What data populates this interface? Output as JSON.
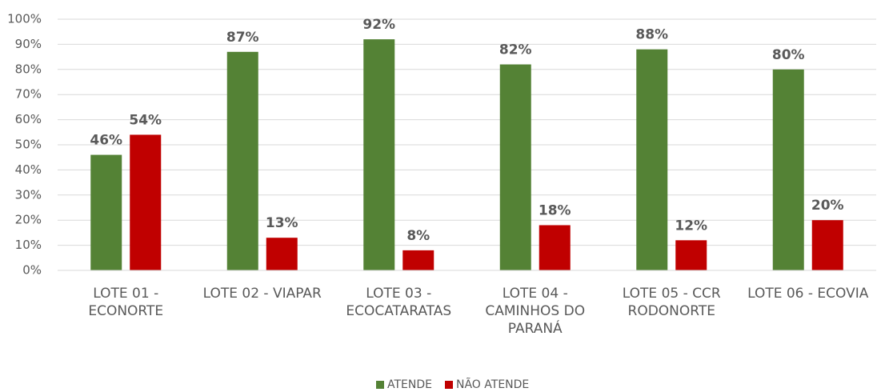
{
  "chart_data": {
    "type": "bar",
    "categories": [
      "LOTE 01 - ECONORTE",
      "LOTE 02 - VIAPAR",
      "LOTE 03 - ECOCATARATAS",
      "LOTE 04 - CAMINHOS DO PARANÁ",
      "LOTE 05 - CCR RODONORTE",
      "LOTE 06 - ECOVIA"
    ],
    "series": [
      {
        "name": "ATENDE",
        "color": "#548235",
        "values": [
          46,
          87,
          92,
          82,
          88,
          80
        ],
        "value_labels": [
          "46%",
          "87%",
          "92%",
          "82%",
          "88%",
          "80%"
        ]
      },
      {
        "name": "NÃO ATENDE",
        "color": "#c00000",
        "values": [
          54,
          13,
          8,
          18,
          12,
          20
        ],
        "value_labels": [
          "54%",
          "13%",
          "8%",
          "18%",
          "12%",
          "20%"
        ]
      }
    ],
    "ylim": [
      0,
      100
    ],
    "yticks": [
      {
        "value": 0,
        "label": "0%"
      },
      {
        "value": 10,
        "label": "10%"
      },
      {
        "value": 20,
        "label": "20%"
      },
      {
        "value": 30,
        "label": "30%"
      },
      {
        "value": 40,
        "label": "40%"
      },
      {
        "value": 50,
        "label": "50%"
      },
      {
        "value": 60,
        "label": "60%"
      },
      {
        "value": 70,
        "label": "70%"
      },
      {
        "value": 80,
        "label": "80%"
      },
      {
        "value": 90,
        "label": "90%"
      },
      {
        "value": 100,
        "label": "100%"
      }
    ],
    "grid": true,
    "legend": "bottom"
  }
}
